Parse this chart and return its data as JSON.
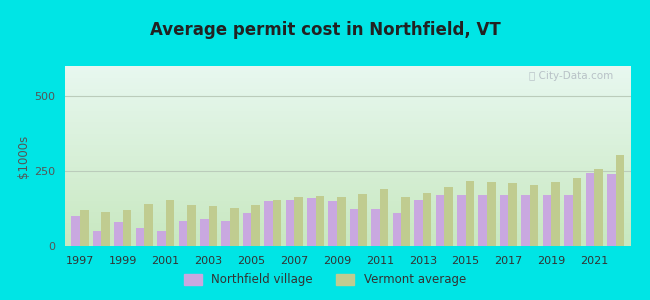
{
  "title": "Average permit cost in Northfield, VT",
  "ylabel": "$1000s",
  "background_outer": "#00e5e5",
  "bar_color_village": "#c9a8e0",
  "bar_color_vermont": "#c0cc90",
  "years": [
    1997,
    1998,
    1999,
    2000,
    2001,
    2002,
    2003,
    2004,
    2005,
    2006,
    2007,
    2008,
    2009,
    2010,
    2011,
    2012,
    2013,
    2014,
    2015,
    2016,
    2017,
    2018,
    2019,
    2020,
    2021,
    2022
  ],
  "northfield_village": [
    100,
    50,
    80,
    60,
    50,
    85,
    90,
    85,
    110,
    150,
    155,
    160,
    150,
    125,
    125,
    110,
    155,
    170,
    170,
    170,
    170,
    170,
    170,
    170,
    245,
    240
  ],
  "vermont_average": [
    120,
    115,
    120,
    140,
    155,
    138,
    132,
    128,
    138,
    152,
    162,
    168,
    162,
    172,
    190,
    162,
    178,
    198,
    218,
    215,
    210,
    205,
    215,
    228,
    258,
    302
  ],
  "ylim": [
    0,
    600
  ],
  "yticks": [
    0,
    250,
    500
  ],
  "xtick_years": [
    1997,
    1999,
    2001,
    2003,
    2005,
    2007,
    2009,
    2011,
    2013,
    2015,
    2017,
    2019,
    2021
  ],
  "legend_village": "Northfield village",
  "legend_vermont": "Vermont average",
  "gridline_color": "#bbccbb",
  "bg_top": "#e8f8f0",
  "bg_bottom": "#c8e8c0",
  "figsize": [
    6.5,
    3.0
  ],
  "dpi": 100
}
